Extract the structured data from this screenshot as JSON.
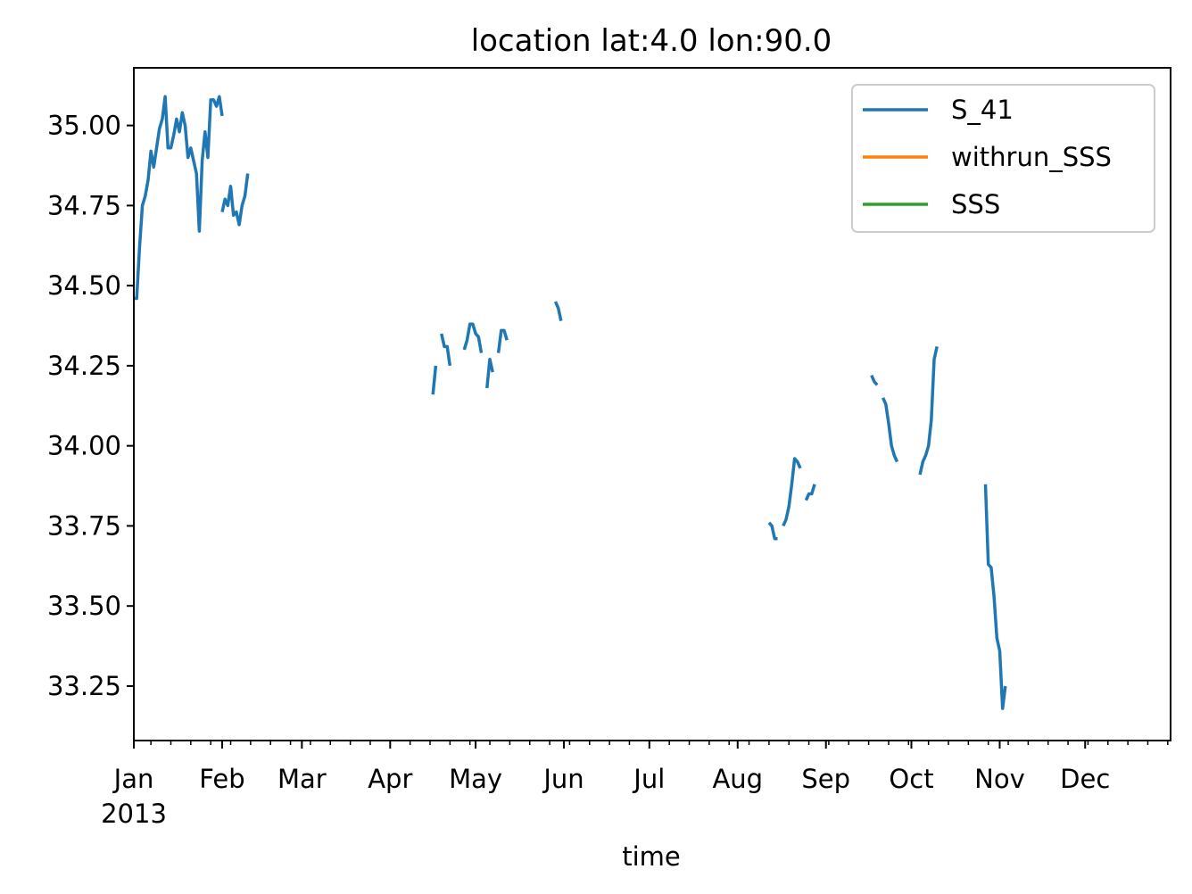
{
  "chart_data": {
    "type": "line",
    "title": "location lat:4.0 lon:90.0",
    "xlabel": "time",
    "ylabel": "",
    "year_label": "2013",
    "x_months": [
      "Jan",
      "Feb",
      "Mar",
      "Apr",
      "May",
      "Jun",
      "Jul",
      "Aug",
      "Sep",
      "Oct",
      "Nov",
      "Dec"
    ],
    "xlim": [
      "2013-01-01",
      "2013-12-31"
    ],
    "ylim": [
      33.08,
      35.18
    ],
    "yticks": [
      "33.25",
      "33.50",
      "33.75",
      "34.00",
      "34.25",
      "34.50",
      "34.75",
      "35.00"
    ],
    "legend_position": "upper right",
    "grid": false,
    "series": [
      {
        "name": "S_41",
        "color": "#1f77b4",
        "segments": [
          [
            [
              "2013-01-01",
              34.46
            ],
            [
              "2013-01-02",
              34.46
            ],
            [
              "2013-01-03",
              34.62
            ],
            [
              "2013-01-04",
              34.75
            ],
            [
              "2013-01-05",
              34.78
            ],
            [
              "2013-01-06",
              34.83
            ],
            [
              "2013-01-07",
              34.92
            ],
            [
              "2013-01-08",
              34.87
            ],
            [
              "2013-01-09",
              34.93
            ],
            [
              "2013-01-10",
              34.99
            ],
            [
              "2013-01-11",
              35.02
            ],
            [
              "2013-01-12",
              35.09
            ],
            [
              "2013-01-13",
              34.93
            ],
            [
              "2013-01-14",
              34.93
            ],
            [
              "2013-01-15",
              34.97
            ],
            [
              "2013-01-16",
              35.02
            ],
            [
              "2013-01-17",
              34.98
            ],
            [
              "2013-01-18",
              35.04
            ],
            [
              "2013-01-19",
              35.0
            ],
            [
              "2013-01-20",
              34.9
            ],
            [
              "2013-01-21",
              34.93
            ],
            [
              "2013-01-22",
              34.89
            ],
            [
              "2013-01-23",
              34.85
            ],
            [
              "2013-01-24",
              34.67
            ],
            [
              "2013-01-25",
              34.89
            ],
            [
              "2013-01-26",
              34.98
            ],
            [
              "2013-01-27",
              34.9
            ],
            [
              "2013-01-28",
              35.08
            ],
            [
              "2013-01-29",
              35.08
            ],
            [
              "2013-01-30",
              35.06
            ],
            [
              "2013-01-31",
              35.09
            ],
            [
              "2013-02-01",
              35.03
            ]
          ],
          [
            [
              "2013-02-01",
              34.73
            ],
            [
              "2013-02-02",
              34.77
            ],
            [
              "2013-02-03",
              34.75
            ],
            [
              "2013-02-04",
              34.81
            ],
            [
              "2013-02-05",
              34.72
            ],
            [
              "2013-02-06",
              34.73
            ],
            [
              "2013-02-07",
              34.69
            ],
            [
              "2013-02-08",
              34.75
            ],
            [
              "2013-02-09",
              34.78
            ],
            [
              "2013-02-10",
              34.85
            ]
          ],
          [
            [
              "2013-04-16",
              34.16
            ],
            [
              "2013-04-17",
              34.25
            ]
          ],
          [
            [
              "2013-04-19",
              34.35
            ],
            [
              "2013-04-20",
              34.31
            ],
            [
              "2013-04-21",
              34.31
            ],
            [
              "2013-04-22",
              34.25
            ]
          ],
          [
            [
              "2013-04-27",
              34.3
            ],
            [
              "2013-04-28",
              34.33
            ],
            [
              "2013-04-29",
              34.38
            ],
            [
              "2013-04-30",
              34.38
            ],
            [
              "2013-05-01",
              34.35
            ],
            [
              "2013-05-02",
              34.34
            ],
            [
              "2013-05-03",
              34.29
            ]
          ],
          [
            [
              "2013-05-05",
              34.18
            ],
            [
              "2013-05-06",
              34.27
            ],
            [
              "2013-05-07",
              34.23
            ]
          ],
          [
            [
              "2013-05-09",
              34.29
            ],
            [
              "2013-05-10",
              34.36
            ],
            [
              "2013-05-11",
              34.36
            ],
            [
              "2013-05-12",
              34.33
            ]
          ],
          [
            [
              "2013-05-29",
              34.45
            ],
            [
              "2013-05-30",
              34.43
            ],
            [
              "2013-05-31",
              34.39
            ]
          ],
          [
            [
              "2013-08-12",
              33.76
            ],
            [
              "2013-08-13",
              33.75
            ],
            [
              "2013-08-14",
              33.71
            ],
            [
              "2013-08-15",
              33.71
            ]
          ],
          [
            [
              "2013-08-17",
              33.75
            ],
            [
              "2013-08-18",
              33.77
            ],
            [
              "2013-08-19",
              33.81
            ],
            [
              "2013-08-20",
              33.88
            ],
            [
              "2013-08-21",
              33.96
            ],
            [
              "2013-08-22",
              33.95
            ],
            [
              "2013-08-23",
              33.93
            ]
          ],
          [
            [
              "2013-08-25",
              33.83
            ],
            [
              "2013-08-26",
              33.85
            ],
            [
              "2013-08-27",
              33.85
            ],
            [
              "2013-08-28",
              33.88
            ]
          ],
          [
            [
              "2013-09-17",
              34.22
            ],
            [
              "2013-09-18",
              34.2
            ],
            [
              "2013-09-19",
              34.19
            ]
          ],
          [
            [
              "2013-09-21",
              34.15
            ],
            [
              "2013-09-22",
              34.13
            ],
            [
              "2013-09-23",
              34.07
            ],
            [
              "2013-09-24",
              34.0
            ],
            [
              "2013-09-25",
              33.97
            ],
            [
              "2013-09-26",
              33.95
            ]
          ],
          [
            [
              "2013-10-04",
              33.91
            ],
            [
              "2013-10-05",
              33.95
            ],
            [
              "2013-10-06",
              33.97
            ],
            [
              "2013-10-07",
              34.0
            ],
            [
              "2013-10-08",
              34.08
            ],
            [
              "2013-10-09",
              34.27
            ],
            [
              "2013-10-10",
              34.31
            ]
          ],
          [
            [
              "2013-10-27",
              33.88
            ],
            [
              "2013-10-28",
              33.63
            ],
            [
              "2013-10-29",
              33.62
            ],
            [
              "2013-10-30",
              33.53
            ],
            [
              "2013-10-31",
              33.4
            ],
            [
              "2013-11-01",
              33.36
            ],
            [
              "2013-11-02",
              33.18
            ],
            [
              "2013-11-03",
              33.25
            ]
          ]
        ]
      },
      {
        "name": "withrun_SSS",
        "color": "#ff7f0e",
        "segments": []
      },
      {
        "name": "SSS",
        "color": "#2ca02c",
        "segments": []
      }
    ]
  }
}
